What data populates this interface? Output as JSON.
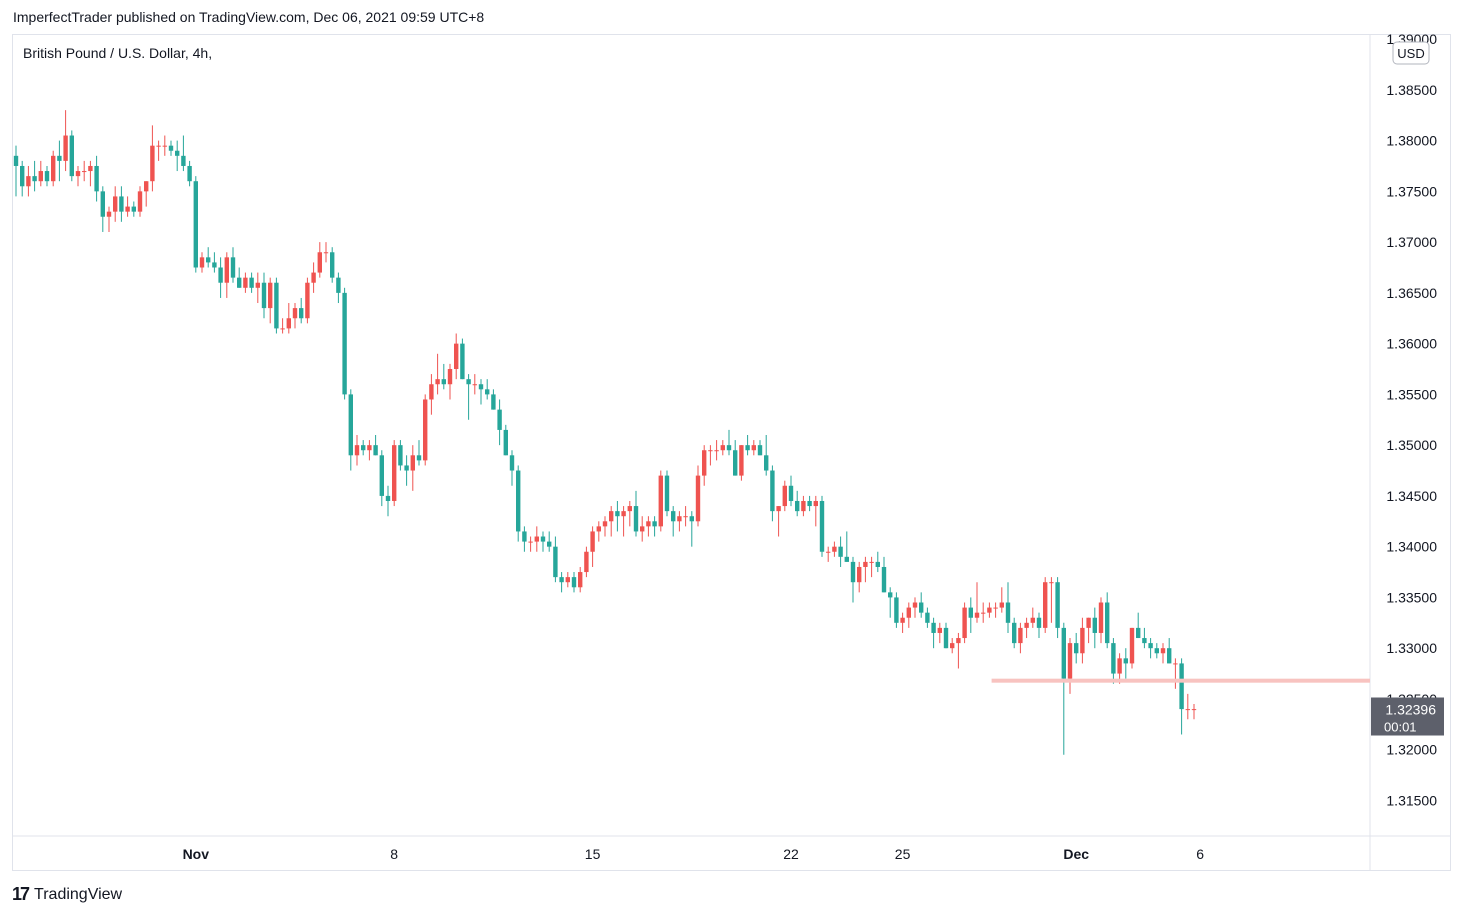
{
  "publisher_line": "ImperfectTrader published on TradingView.com, Dec 06, 2021 09:59 UTC+8",
  "symbol_title": "British Pound / U.S. Dollar, 4h,",
  "footer": {
    "brand": "TradingView",
    "logo_icon": "tradingview-logo-icon"
  },
  "colors": {
    "up": "#ef5350",
    "down": "#26a69a",
    "resistance": "#f8c3c0",
    "price_label_bg": "#5d606b",
    "grid": "#e0e3eb"
  },
  "chart_data": {
    "type": "candlestick",
    "symbol": "British Pound / U.S. Dollar",
    "interval": "4h",
    "currency_badge": "USD",
    "y_ticks": [
      "1.31500",
      "1.32000",
      "1.32500",
      "1.33000",
      "1.33500",
      "1.34000",
      "1.34500",
      "1.35000",
      "1.35500",
      "1.36000",
      "1.36500",
      "1.37000",
      "1.37500",
      "1.38000",
      "1.38500",
      "1.39000"
    ],
    "ylim": [
      1.3115,
      1.3905
    ],
    "x_labels": [
      {
        "label": "Nov",
        "index": 29,
        "bold": true
      },
      {
        "label": "8",
        "index": 61,
        "bold": false
      },
      {
        "label": "15",
        "index": 93,
        "bold": false
      },
      {
        "label": "22",
        "index": 125,
        "bold": false
      },
      {
        "label": "25",
        "index": 143,
        "bold": false
      },
      {
        "label": "Dec",
        "index": 171,
        "bold": true
      },
      {
        "label": "6",
        "index": 191,
        "bold": false
      }
    ],
    "last_price": "1.32396",
    "countdown": "00:01",
    "resistance_level": 1.3268,
    "resistance_from_index": 158,
    "candles": [
      [
        1.3785,
        1.3795,
        1.3745,
        1.3775
      ],
      [
        1.3775,
        1.378,
        1.3745,
        1.3755
      ],
      [
        1.3755,
        1.3775,
        1.3745,
        1.3765
      ],
      [
        1.3765,
        1.378,
        1.375,
        1.376
      ],
      [
        1.376,
        1.378,
        1.3755,
        1.377
      ],
      [
        1.377,
        1.3775,
        1.3755,
        1.376
      ],
      [
        1.376,
        1.379,
        1.3755,
        1.3785
      ],
      [
        1.3785,
        1.38,
        1.376,
        1.378
      ],
      [
        1.378,
        1.383,
        1.377,
        1.3805
      ],
      [
        1.3805,
        1.381,
        1.376,
        1.3765
      ],
      [
        1.3765,
        1.3775,
        1.3755,
        1.377
      ],
      [
        1.377,
        1.378,
        1.376,
        1.377
      ],
      [
        1.377,
        1.378,
        1.3755,
        1.3775
      ],
      [
        1.3775,
        1.3785,
        1.374,
        1.375
      ],
      [
        1.375,
        1.3755,
        1.371,
        1.3725
      ],
      [
        1.3725,
        1.3735,
        1.371,
        1.373
      ],
      [
        1.373,
        1.3755,
        1.372,
        1.3745
      ],
      [
        1.3745,
        1.3755,
        1.372,
        1.373
      ],
      [
        1.373,
        1.3745,
        1.3725,
        1.3735
      ],
      [
        1.3735,
        1.374,
        1.3725,
        1.373
      ],
      [
        1.373,
        1.3755,
        1.3725,
        1.375
      ],
      [
        1.375,
        1.376,
        1.3735,
        1.376
      ],
      [
        1.376,
        1.3815,
        1.375,
        1.3795
      ],
      [
        1.3795,
        1.38,
        1.378,
        1.3795
      ],
      [
        1.3795,
        1.3805,
        1.3785,
        1.3795
      ],
      [
        1.3795,
        1.38,
        1.3785,
        1.379
      ],
      [
        1.379,
        1.38,
        1.377,
        1.3785
      ],
      [
        1.3785,
        1.3805,
        1.377,
        1.3775
      ],
      [
        1.3775,
        1.378,
        1.3755,
        1.376
      ],
      [
        1.376,
        1.3765,
        1.367,
        1.3675
      ],
      [
        1.3675,
        1.369,
        1.367,
        1.3685
      ],
      [
        1.3685,
        1.3695,
        1.3675,
        1.368
      ],
      [
        1.368,
        1.369,
        1.367,
        1.3675
      ],
      [
        1.3675,
        1.3685,
        1.3645,
        1.366
      ],
      [
        1.366,
        1.369,
        1.3645,
        1.3685
      ],
      [
        1.3685,
        1.3695,
        1.366,
        1.3665
      ],
      [
        1.3665,
        1.3675,
        1.3655,
        1.3655
      ],
      [
        1.3655,
        1.367,
        1.365,
        1.3665
      ],
      [
        1.3665,
        1.367,
        1.365,
        1.3655
      ],
      [
        1.3655,
        1.367,
        1.364,
        1.366
      ],
      [
        1.366,
        1.367,
        1.3625,
        1.3635
      ],
      [
        1.3635,
        1.3665,
        1.362,
        1.366
      ],
      [
        1.366,
        1.3665,
        1.361,
        1.3615
      ],
      [
        1.3615,
        1.3625,
        1.361,
        1.3615
      ],
      [
        1.3615,
        1.364,
        1.361,
        1.3625
      ],
      [
        1.3625,
        1.364,
        1.3615,
        1.3635
      ],
      [
        1.3635,
        1.3645,
        1.362,
        1.3625
      ],
      [
        1.3625,
        1.3665,
        1.362,
        1.366
      ],
      [
        1.366,
        1.368,
        1.365,
        1.367
      ],
      [
        1.367,
        1.37,
        1.3665,
        1.369
      ],
      [
        1.369,
        1.37,
        1.368,
        1.369
      ],
      [
        1.369,
        1.3695,
        1.366,
        1.3665
      ],
      [
        1.3665,
        1.367,
        1.364,
        1.365
      ],
      [
        1.365,
        1.3655,
        1.3545,
        1.355
      ],
      [
        1.355,
        1.3555,
        1.3475,
        1.349
      ],
      [
        1.349,
        1.351,
        1.348,
        1.35
      ],
      [
        1.35,
        1.3505,
        1.349,
        1.3495
      ],
      [
        1.3495,
        1.3505,
        1.3485,
        1.35
      ],
      [
        1.35,
        1.351,
        1.349,
        1.349
      ],
      [
        1.349,
        1.3495,
        1.344,
        1.345
      ],
      [
        1.345,
        1.346,
        1.343,
        1.3445
      ],
      [
        1.3445,
        1.3505,
        1.344,
        1.35
      ],
      [
        1.35,
        1.3505,
        1.3475,
        1.348
      ],
      [
        1.348,
        1.349,
        1.346,
        1.3475
      ],
      [
        1.3475,
        1.35,
        1.3455,
        1.349
      ],
      [
        1.349,
        1.3505,
        1.348,
        1.3485
      ],
      [
        1.3485,
        1.355,
        1.348,
        1.3545
      ],
      [
        1.3545,
        1.357,
        1.353,
        1.356
      ],
      [
        1.356,
        1.359,
        1.355,
        1.3565
      ],
      [
        1.3565,
        1.358,
        1.3555,
        1.356
      ],
      [
        1.356,
        1.358,
        1.3545,
        1.3575
      ],
      [
        1.3575,
        1.361,
        1.3565,
        1.36
      ],
      [
        1.36,
        1.3605,
        1.3565,
        1.3565
      ],
      [
        1.3565,
        1.357,
        1.3525,
        1.356
      ],
      [
        1.356,
        1.357,
        1.355,
        1.356
      ],
      [
        1.356,
        1.3565,
        1.354,
        1.3555
      ],
      [
        1.3555,
        1.3565,
        1.3545,
        1.355
      ],
      [
        1.355,
        1.3555,
        1.3535,
        1.3535
      ],
      [
        1.3535,
        1.3545,
        1.35,
        1.3515
      ],
      [
        1.3515,
        1.352,
        1.349,
        1.349
      ],
      [
        1.349,
        1.3495,
        1.346,
        1.3475
      ],
      [
        1.3475,
        1.348,
        1.3405,
        1.3415
      ],
      [
        1.3415,
        1.342,
        1.3395,
        1.3405
      ],
      [
        1.3405,
        1.341,
        1.3395,
        1.3405
      ],
      [
        1.3405,
        1.342,
        1.3395,
        1.341
      ],
      [
        1.341,
        1.3415,
        1.3395,
        1.3405
      ],
      [
        1.3405,
        1.3415,
        1.3395,
        1.34
      ],
      [
        1.34,
        1.341,
        1.3365,
        1.337
      ],
      [
        1.337,
        1.3375,
        1.3355,
        1.3365
      ],
      [
        1.3365,
        1.3375,
        1.336,
        1.337
      ],
      [
        1.337,
        1.3375,
        1.3355,
        1.336
      ],
      [
        1.336,
        1.338,
        1.3355,
        1.3375
      ],
      [
        1.3375,
        1.34,
        1.337,
        1.3395
      ],
      [
        1.3395,
        1.342,
        1.338,
        1.3415
      ],
      [
        1.3415,
        1.3425,
        1.3405,
        1.342
      ],
      [
        1.342,
        1.343,
        1.341,
        1.3425
      ],
      [
        1.3425,
        1.344,
        1.341,
        1.3435
      ],
      [
        1.3435,
        1.3445,
        1.3415,
        1.343
      ],
      [
        1.343,
        1.344,
        1.341,
        1.3435
      ],
      [
        1.3435,
        1.3445,
        1.342,
        1.344
      ],
      [
        1.344,
        1.3455,
        1.341,
        1.3415
      ],
      [
        1.3415,
        1.343,
        1.3405,
        1.342
      ],
      [
        1.342,
        1.343,
        1.341,
        1.3425
      ],
      [
        1.3425,
        1.343,
        1.341,
        1.342
      ],
      [
        1.342,
        1.3475,
        1.3415,
        1.347
      ],
      [
        1.347,
        1.3475,
        1.343,
        1.3435
      ],
      [
        1.3435,
        1.344,
        1.341,
        1.3425
      ],
      [
        1.3425,
        1.3435,
        1.3415,
        1.343
      ],
      [
        1.343,
        1.344,
        1.342,
        1.343
      ],
      [
        1.343,
        1.3435,
        1.34,
        1.3425
      ],
      [
        1.3425,
        1.348,
        1.342,
        1.347
      ],
      [
        1.347,
        1.35,
        1.346,
        1.3495
      ],
      [
        1.3495,
        1.35,
        1.348,
        1.3495
      ],
      [
        1.3495,
        1.3505,
        1.3485,
        1.3495
      ],
      [
        1.3495,
        1.3505,
        1.349,
        1.35
      ],
      [
        1.35,
        1.3515,
        1.349,
        1.3495
      ],
      [
        1.3495,
        1.3505,
        1.347,
        1.347
      ],
      [
        1.347,
        1.35,
        1.3465,
        1.35
      ],
      [
        1.35,
        1.351,
        1.349,
        1.3495
      ],
      [
        1.3495,
        1.3505,
        1.349,
        1.35
      ],
      [
        1.35,
        1.3505,
        1.349,
        1.349
      ],
      [
        1.349,
        1.351,
        1.347,
        1.3475
      ],
      [
        1.3475,
        1.348,
        1.3425,
        1.3435
      ],
      [
        1.3435,
        1.344,
        1.341,
        1.344
      ],
      [
        1.344,
        1.3465,
        1.3435,
        1.346
      ],
      [
        1.346,
        1.347,
        1.344,
        1.3445
      ],
      [
        1.3445,
        1.3455,
        1.343,
        1.3435
      ],
      [
        1.3435,
        1.345,
        1.343,
        1.3445
      ],
      [
        1.3445,
        1.345,
        1.3435,
        1.344
      ],
      [
        1.344,
        1.345,
        1.342,
        1.3445
      ],
      [
        1.3445,
        1.345,
        1.339,
        1.3395
      ],
      [
        1.3395,
        1.34,
        1.3385,
        1.3395
      ],
      [
        1.3395,
        1.3405,
        1.339,
        1.34
      ],
      [
        1.34,
        1.341,
        1.338,
        1.339
      ],
      [
        1.339,
        1.3415,
        1.3385,
        1.3385
      ],
      [
        1.3385,
        1.339,
        1.3345,
        1.3365
      ],
      [
        1.3365,
        1.3385,
        1.3355,
        1.338
      ],
      [
        1.338,
        1.339,
        1.3365,
        1.3385
      ],
      [
        1.3385,
        1.339,
        1.337,
        1.3385
      ],
      [
        1.3385,
        1.3395,
        1.3375,
        1.338
      ],
      [
        1.338,
        1.339,
        1.3355,
        1.3355
      ],
      [
        1.3355,
        1.336,
        1.333,
        1.335
      ],
      [
        1.335,
        1.3355,
        1.332,
        1.3325
      ],
      [
        1.3325,
        1.3335,
        1.3315,
        1.333
      ],
      [
        1.333,
        1.3345,
        1.332,
        1.334
      ],
      [
        1.334,
        1.335,
        1.333,
        1.3345
      ],
      [
        1.3345,
        1.3355,
        1.333,
        1.3335
      ],
      [
        1.3335,
        1.334,
        1.332,
        1.3325
      ],
      [
        1.3325,
        1.333,
        1.33,
        1.3315
      ],
      [
        1.3315,
        1.3325,
        1.3305,
        1.332
      ],
      [
        1.332,
        1.3325,
        1.33,
        1.33
      ],
      [
        1.33,
        1.331,
        1.3295,
        1.3305
      ],
      [
        1.3305,
        1.3315,
        1.328,
        1.331
      ],
      [
        1.331,
        1.3345,
        1.3305,
        1.334
      ],
      [
        1.334,
        1.335,
        1.3315,
        1.333
      ],
      [
        1.333,
        1.3365,
        1.3325,
        1.3335
      ],
      [
        1.3335,
        1.3345,
        1.3325,
        1.3335
      ],
      [
        1.3335,
        1.3345,
        1.333,
        1.334
      ],
      [
        1.334,
        1.3345,
        1.333,
        1.334
      ],
      [
        1.334,
        1.336,
        1.3335,
        1.3345
      ],
      [
        1.3345,
        1.3365,
        1.3315,
        1.3325
      ],
      [
        1.3325,
        1.333,
        1.33,
        1.3305
      ],
      [
        1.3305,
        1.3325,
        1.3295,
        1.332
      ],
      [
        1.332,
        1.333,
        1.331,
        1.3325
      ],
      [
        1.3325,
        1.334,
        1.332,
        1.333
      ],
      [
        1.333,
        1.3335,
        1.331,
        1.332
      ],
      [
        1.332,
        1.337,
        1.3315,
        1.3365
      ],
      [
        1.3365,
        1.337,
        1.3325,
        1.3365
      ],
      [
        1.3365,
        1.337,
        1.331,
        1.332
      ],
      [
        1.332,
        1.3325,
        1.3195,
        1.327
      ],
      [
        1.327,
        1.331,
        1.3255,
        1.3305
      ],
      [
        1.3305,
        1.3315,
        1.3285,
        1.3295
      ],
      [
        1.3295,
        1.333,
        1.3285,
        1.332
      ],
      [
        1.332,
        1.333,
        1.3305,
        1.333
      ],
      [
        1.333,
        1.334,
        1.33,
        1.3315
      ],
      [
        1.3315,
        1.335,
        1.3305,
        1.3345
      ],
      [
        1.3345,
        1.3355,
        1.33,
        1.3305
      ],
      [
        1.3305,
        1.331,
        1.3265,
        1.3275
      ],
      [
        1.3275,
        1.3295,
        1.3265,
        1.329
      ],
      [
        1.329,
        1.33,
        1.327,
        1.3285
      ],
      [
        1.3285,
        1.332,
        1.328,
        1.332
      ],
      [
        1.332,
        1.3335,
        1.331,
        1.331
      ],
      [
        1.331,
        1.332,
        1.33,
        1.3305
      ],
      [
        1.3305,
        1.331,
        1.329,
        1.33
      ],
      [
        1.33,
        1.3305,
        1.329,
        1.3295
      ],
      [
        1.3295,
        1.3305,
        1.3285,
        1.33
      ],
      [
        1.33,
        1.331,
        1.3285,
        1.3285
      ],
      [
        1.3285,
        1.329,
        1.326,
        1.3285
      ],
      [
        1.3285,
        1.329,
        1.3215,
        1.324
      ],
      [
        1.324,
        1.3255,
        1.323,
        1.324
      ],
      [
        1.324,
        1.3245,
        1.323,
        1.324
      ]
    ]
  }
}
